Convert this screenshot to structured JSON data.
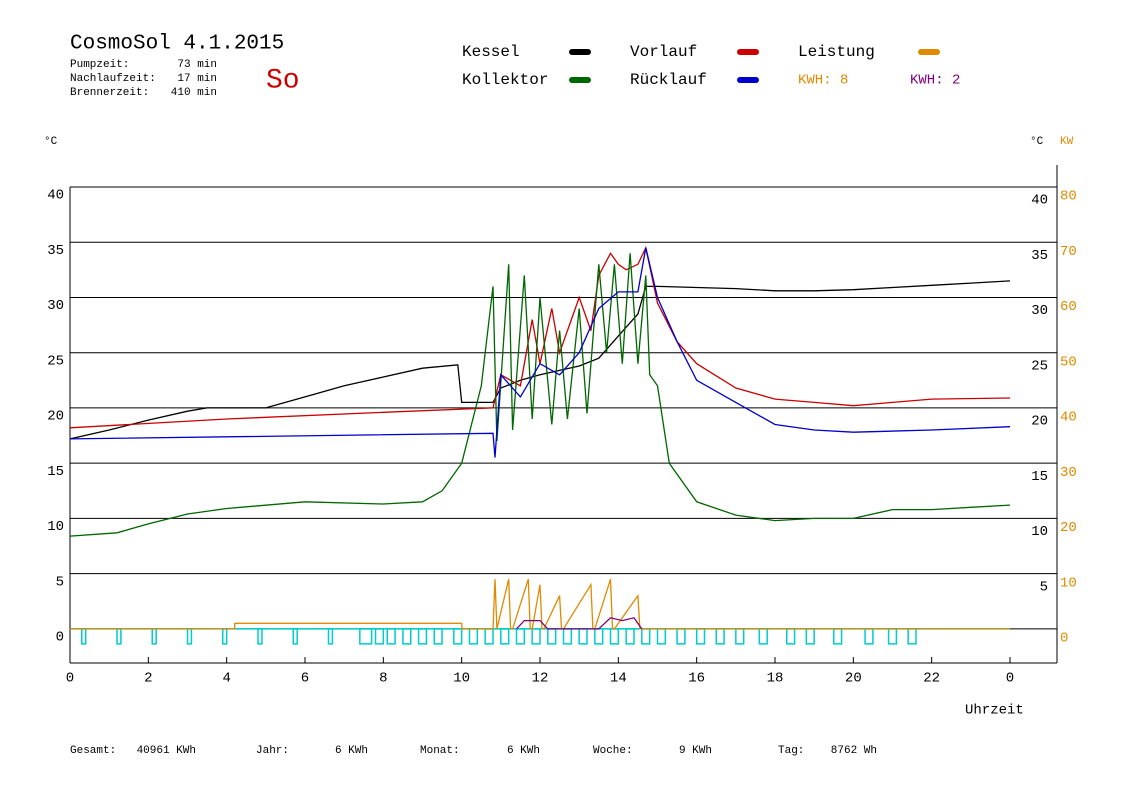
{
  "chart_data": {
    "type": "line",
    "title": "CosmoSol 4.1.2015",
    "day": "So",
    "info": [
      [
        "Pumpzeit:",
        "73 min"
      ],
      [
        "Nachlaufzeit:",
        "17 min"
      ],
      [
        "Brennerzeit:",
        "410 min"
      ]
    ],
    "y_unit": "°C",
    "y_right_unit": "°C",
    "y2_unit": "KW",
    "x_label": "Uhrzeit",
    "kwh_labels": [
      {
        "text": "KWH: 8",
        "color": "#e08a00"
      },
      {
        "text": "KWH: 2",
        "color": "#800080"
      }
    ],
    "footer": [
      [
        "Gesamt:",
        "40961 KWh"
      ],
      [
        "Jahr:",
        "6 KWh"
      ],
      [
        "Monat:",
        "6 KWh"
      ],
      [
        "Woche:",
        "9 KWh"
      ],
      [
        "Tag:",
        "8762 Wh"
      ]
    ],
    "xlim": [
      0,
      25.2
    ],
    "xticks": [
      0,
      2,
      4,
      6,
      8,
      10,
      12,
      14,
      16,
      18,
      20,
      22,
      {
        "value": 24,
        "label": "0"
      }
    ],
    "ylim": [
      -3,
      40
    ],
    "yticks": [
      0,
      5,
      10,
      15,
      20,
      25,
      30,
      35,
      40
    ],
    "y_right_ticks": [
      5,
      10,
      15,
      20,
      25,
      30,
      35,
      40
    ],
    "y2lim": [
      -6,
      80
    ],
    "y2ticks": [
      0,
      10,
      20,
      30,
      40,
      50,
      60,
      70,
      80
    ],
    "grid": true,
    "series": [
      {
        "name": "Kessel",
        "color": "#000000",
        "x": [
          0,
          1,
          2,
          3,
          3.5,
          5,
          6,
          7,
          8,
          9,
          9.9,
          10,
          10.8,
          11,
          11.5,
          12,
          12.5,
          13,
          13.5,
          14,
          14.5,
          14.7,
          15,
          16,
          17,
          18,
          19,
          20,
          21,
          22,
          23,
          24
        ],
        "values": [
          17.2,
          18.0,
          18.9,
          19.7,
          20.0,
          20.0,
          21.0,
          22.0,
          22.8,
          23.6,
          23.9,
          20.5,
          20.5,
          21.8,
          22.5,
          23.0,
          23.4,
          23.8,
          24.5,
          26.5,
          28.5,
          31.0,
          31.0,
          30.9,
          30.8,
          30.6,
          30.6,
          30.7,
          30.9,
          31.1,
          31.3,
          31.5
        ]
      },
      {
        "name": "Vorlauf",
        "color": "#cc0000",
        "x": [
          0,
          4,
          8,
          10.8,
          11,
          11.5,
          11.8,
          12,
          12.3,
          12.5,
          13,
          13.3,
          13.5,
          13.8,
          14,
          14.2,
          14.5,
          14.7,
          15,
          15.5,
          16,
          17,
          18,
          19,
          20,
          21,
          22,
          24
        ],
        "values": [
          18.2,
          19.0,
          19.6,
          20.0,
          23,
          22,
          28,
          24,
          29,
          25,
          30,
          27,
          32,
          34,
          33,
          32.5,
          33,
          34.5,
          29.5,
          26,
          24,
          21.8,
          20.8,
          20.5,
          20.2,
          20.5,
          20.8,
          20.9
        ]
      },
      {
        "name": "Leistung",
        "color": "#e08a00",
        "axis": "y2",
        "x": [
          0,
          4.2,
          4.21,
          10,
          10.01,
          10.8,
          10.85,
          10.9,
          11.2,
          11.25,
          11.3,
          11.7,
          11.75,
          11.8,
          12,
          12.05,
          12.1,
          12.5,
          12.55,
          12.6,
          13.3,
          13.35,
          13.4,
          13.8,
          13.85,
          13.9,
          14.5,
          14.55,
          14.6,
          24
        ],
        "values": [
          0,
          0,
          1,
          1,
          0,
          0,
          9,
          0,
          9,
          0,
          0,
          9,
          0,
          0,
          8,
          0,
          0,
          6,
          0,
          0,
          8,
          0,
          0,
          9,
          0,
          0,
          6,
          0,
          0,
          0
        ]
      },
      {
        "name": "Kollektor",
        "color": "#006600",
        "x": [
          0,
          1.2,
          2,
          3,
          4,
          6,
          8,
          9,
          9.5,
          10,
          10.5,
          10.8,
          10.9,
          11.2,
          11.3,
          11.6,
          11.8,
          12,
          12.3,
          12.5,
          12.7,
          13,
          13.2,
          13.5,
          13.7,
          13.9,
          14.1,
          14.3,
          14.5,
          14.7,
          14.8,
          15,
          15.3,
          16,
          17,
          18,
          19,
          20,
          21,
          22,
          23,
          24
        ],
        "values": [
          8.4,
          8.7,
          9.5,
          10.4,
          10.9,
          11.5,
          11.3,
          11.5,
          12.5,
          15,
          22,
          31,
          17,
          33,
          18,
          32,
          19,
          30,
          18.5,
          27,
          19,
          29,
          19.5,
          33,
          25,
          33,
          24,
          34,
          24,
          32,
          23,
          22,
          15,
          11.5,
          10.3,
          9.8,
          10,
          10,
          10.8,
          10.8,
          11,
          11.2
        ]
      },
      {
        "name": "Rücklauf",
        "color": "#0000cc",
        "x": [
          0,
          10.8,
          10.85,
          11,
          11.5,
          12,
          12.5,
          13,
          13.5,
          14,
          14.5,
          14.7,
          15,
          15.5,
          16,
          17,
          18,
          19,
          20,
          22,
          24
        ],
        "values": [
          17.2,
          17.7,
          15.5,
          23,
          21,
          24,
          23,
          25,
          29,
          30.5,
          30.5,
          34.5,
          30,
          26,
          22.5,
          20.5,
          18.5,
          18,
          17.8,
          18,
          18.3
        ]
      },
      {
        "color": "#800080",
        "axis": "y2",
        "x": [
          11.4,
          11.6,
          12.0,
          12.2,
          13.5,
          13.8,
          14.1,
          14.4,
          14.6
        ],
        "values": [
          0,
          1.5,
          1.5,
          0,
          0,
          2,
          1.5,
          2,
          0
        ]
      }
    ],
    "pump_color": "#00cccc",
    "pump_intervals": [
      [
        0.3,
        0.4
      ],
      [
        1.2,
        1.3
      ],
      [
        2.1,
        2.2
      ],
      [
        3.0,
        3.1
      ],
      [
        3.9,
        4.0
      ],
      [
        4.8,
        4.9
      ],
      [
        5.7,
        5.8
      ],
      [
        6.6,
        6.7
      ],
      [
        7.4,
        7.7
      ],
      [
        7.8,
        8.0
      ],
      [
        8.1,
        8.3
      ],
      [
        8.5,
        8.7
      ],
      [
        8.9,
        9.1
      ],
      [
        9.3,
        9.5
      ],
      [
        9.8,
        10.0
      ],
      [
        10.2,
        10.4
      ],
      [
        10.6,
        10.8
      ],
      [
        11.0,
        11.2
      ],
      [
        11.4,
        11.6
      ],
      [
        11.8,
        12.0
      ],
      [
        12.2,
        12.4
      ],
      [
        12.6,
        12.8
      ],
      [
        13.0,
        13.2
      ],
      [
        13.4,
        13.6
      ],
      [
        13.8,
        14.0
      ],
      [
        14.2,
        14.4
      ],
      [
        14.6,
        14.8
      ],
      [
        15.0,
        15.2
      ],
      [
        15.5,
        15.7
      ],
      [
        16.0,
        16.2
      ],
      [
        16.5,
        16.7
      ],
      [
        17.0,
        17.2
      ],
      [
        17.6,
        17.8
      ],
      [
        18.3,
        18.5
      ],
      [
        18.8,
        19.0
      ],
      [
        19.5,
        19.7
      ],
      [
        20.3,
        20.5
      ],
      [
        20.9,
        21.1
      ],
      [
        21.4,
        21.6
      ]
    ]
  }
}
